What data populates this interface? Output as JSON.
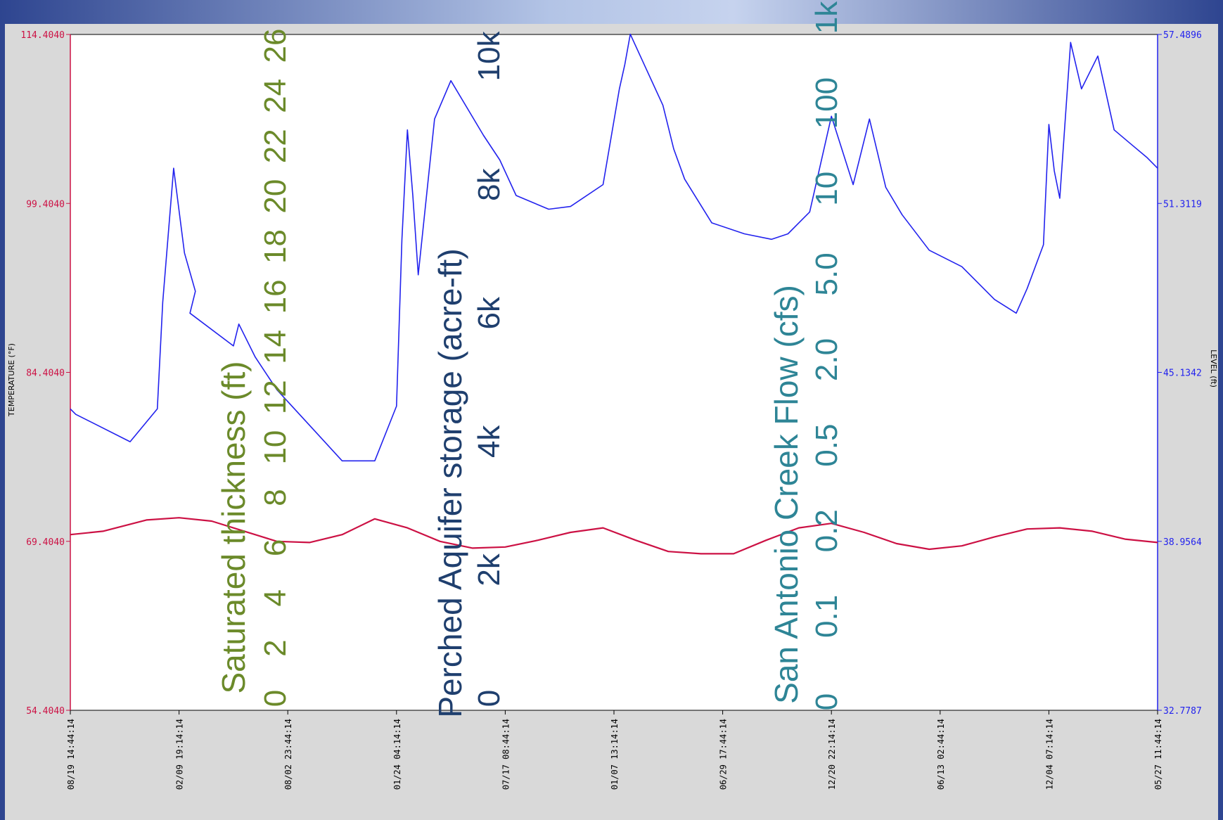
{
  "colors": {
    "temperature": "#cc1144",
    "level": "#2222ee",
    "saturated": "#6b8a2a",
    "storage": "#1f3f6e",
    "flow": "#2e8596",
    "frame": "#d9d9d9",
    "plot_bg": "#ffffff"
  },
  "chart_data": {
    "type": "line",
    "y_left": {
      "label": "TEMPERATURE (°F)",
      "ticks": [
        "114.4040",
        "99.4040",
        "84.4040",
        "69.4040",
        "54.4040"
      ],
      "range": [
        54.404,
        114.404
      ]
    },
    "y_right": {
      "label": "LEVEL (ft)",
      "ticks": [
        "57.4896",
        "51.3119",
        "45.1342",
        "38.9564",
        "32.7787"
      ],
      "range": [
        32.7787,
        57.4896
      ]
    },
    "x_ticks": [
      "08/19 14:44:14",
      "02/09 19:14:14",
      "08/02 23:44:14",
      "01/24 04:14:14",
      "07/17 08:44:14",
      "01/07 13:14:14",
      "06/29 17:44:14",
      "12/20 22:14:14",
      "06/13 02:44:14",
      "12/04 07:14:14",
      "05/27 11:44:14"
    ],
    "series": [
      {
        "name": "LEVEL (ft)",
        "axis": "right",
        "x": [
          0,
          0.05,
          0.2,
          0.55,
          0.8,
          0.85,
          0.95,
          1.05,
          1.15,
          1.1,
          1.5,
          1.55,
          1.7,
          1.9,
          2.2,
          2.5,
          2.8,
          3.0,
          3.05,
          3.1,
          3.15,
          3.2,
          3.35,
          3.5,
          3.8,
          3.95,
          4.1,
          4.4,
          4.6,
          4.9,
          5.05,
          5.1,
          5.15,
          5.3,
          5.45,
          5.55,
          5.65,
          5.9,
          6.2,
          6.45,
          6.6,
          6.8,
          7.0,
          7.2,
          7.35,
          7.5,
          7.65,
          7.9,
          8.2,
          8.5,
          8.7,
          8.8,
          8.95,
          9.0,
          9.05,
          9.1,
          9.2,
          9.3,
          9.45,
          9.6,
          9.75,
          9.9,
          10.0
        ],
        "y": [
          43.8,
          43.6,
          43.3,
          42.6,
          43.8,
          47.7,
          52.6,
          49.5,
          48.1,
          47.3,
          46.1,
          46.9,
          45.7,
          44.5,
          43.2,
          41.9,
          41.9,
          43.9,
          50.0,
          54.0,
          51.6,
          48.7,
          54.4,
          55.8,
          53.8,
          52.9,
          51.6,
          51.1,
          51.2,
          52.0,
          55.5,
          56.4,
          57.5,
          56.2,
          54.9,
          53.3,
          52.2,
          50.6,
          50.2,
          50.0,
          50.2,
          51.0,
          54.5,
          52.0,
          54.4,
          51.9,
          50.9,
          49.6,
          49.0,
          47.8,
          47.3,
          48.2,
          49.8,
          54.2,
          52.5,
          51.5,
          57.2,
          55.5,
          56.7,
          54.0,
          53.5,
          53.0,
          52.6
        ]
      },
      {
        "name": "TEMPERATURE (°F)",
        "axis": "left",
        "x": [
          0,
          0.3,
          0.7,
          1.0,
          1.3,
          1.6,
          1.9,
          2.2,
          2.5,
          2.8,
          3.1,
          3.4,
          3.7,
          4.0,
          4.3,
          4.6,
          4.9,
          5.2,
          5.5,
          5.8,
          6.1,
          6.4,
          6.7,
          7.0,
          7.3,
          7.6,
          7.9,
          8.2,
          8.5,
          8.8,
          9.1,
          9.4,
          9.7,
          10.0
        ],
        "y": [
          70.0,
          70.3,
          71.3,
          71.5,
          71.2,
          70.3,
          69.4,
          69.3,
          70.0,
          71.4,
          70.6,
          69.4,
          68.8,
          68.9,
          69.5,
          70.2,
          70.6,
          69.5,
          68.5,
          68.3,
          68.3,
          69.5,
          70.6,
          71.0,
          70.2,
          69.2,
          68.7,
          69.0,
          69.8,
          70.5,
          70.6,
          70.3,
          69.6,
          69.3
        ]
      }
    ]
  },
  "overlay": {
    "saturated": {
      "title": "Saturated thickness (ft)",
      "ticks": [
        "0",
        "2",
        "4",
        "6",
        "8",
        "10",
        "12",
        "14",
        "16",
        "18",
        "20",
        "22",
        "24",
        "26"
      ]
    },
    "storage": {
      "title": "Perched Aquifer storage (acre-ft)",
      "ticks": [
        "0",
        "2k",
        "4k",
        "6k",
        "8k",
        "10k"
      ]
    },
    "flow": {
      "title": "San Antonio Creek Flow (cfs)",
      "ticks": [
        "0",
        "0.1",
        "0.2",
        "0.5",
        "2.0",
        "5.0",
        "10",
        "100",
        "1k"
      ]
    }
  }
}
